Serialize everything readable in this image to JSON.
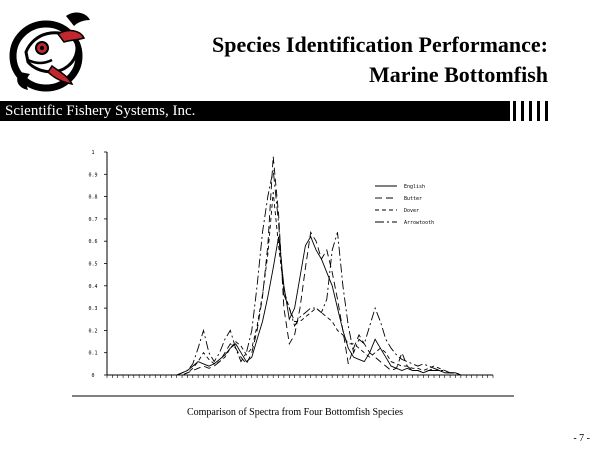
{
  "header": {
    "title_line1": "Species Identification Performance:",
    "title_line2": "Marine Bottomfish",
    "banner": "Scientific Fishery Systems, Inc."
  },
  "footer": {
    "caption": "Comparison of Spectra from Four Bottomfish Species",
    "page_number": "- 7 -"
  },
  "colors": {
    "banner": "#000000",
    "logo_red": "#c0282d",
    "ink": "#000000"
  },
  "chart_data": {
    "type": "line",
    "title": "",
    "xlabel": "",
    "ylabel": "",
    "ylim": [
      0,
      1
    ],
    "yticks": [
      "0",
      "0.1",
      "0.2",
      "0.3",
      "0.4",
      "0.5",
      "0.6",
      "0.7",
      "0.8",
      "0.9",
      "1"
    ],
    "xlim": [
      0,
      72
    ],
    "legend": "top-right",
    "series": [
      {
        "name": "English",
        "dash": "solid",
        "values": [
          0,
          0,
          0,
          0,
          0,
          0,
          0,
          0,
          0,
          0,
          0,
          0,
          0,
          0,
          0.01,
          0.02,
          0.04,
          0.06,
          0.05,
          0.04,
          0.05,
          0.07,
          0.09,
          0.12,
          0.14,
          0.1,
          0.06,
          0.08,
          0.16,
          0.24,
          0.35,
          0.48,
          0.62,
          0.4,
          0.25,
          0.3,
          0.44,
          0.58,
          0.62,
          0.56,
          0.52,
          0.46,
          0.4,
          0.3,
          0.2,
          0.12,
          0.08,
          0.07,
          0.06,
          0.1,
          0.16,
          0.12,
          0.08,
          0.04,
          0.03,
          0.02,
          0.03,
          0.02,
          0.02,
          0.01,
          0.02,
          0.02,
          0.02,
          0.01,
          0.01,
          0.01,
          0,
          0,
          0,
          0,
          0,
          0,
          0
        ]
      },
      {
        "name": "Butter",
        "dash": "longdash",
        "values": [
          0,
          0,
          0,
          0,
          0,
          0,
          0,
          0,
          0,
          0,
          0,
          0,
          0,
          0,
          0,
          0.01,
          0.02,
          0.03,
          0.04,
          0.03,
          0.04,
          0.06,
          0.1,
          0.14,
          0.12,
          0.08,
          0.05,
          0.1,
          0.2,
          0.35,
          0.58,
          0.98,
          0.72,
          0.3,
          0.14,
          0.18,
          0.3,
          0.48,
          0.64,
          0.6,
          0.52,
          0.56,
          0.46,
          0.34,
          0.2,
          0.05,
          0.12,
          0.18,
          0.14,
          0.1,
          0.08,
          0.06,
          0.04,
          0.02,
          0.03,
          0.1,
          0.04,
          0.02,
          0.02,
          0.01,
          0.02,
          0.03,
          0.02,
          0.01,
          0.01,
          0.01,
          0,
          0,
          0,
          0,
          0,
          0,
          0
        ]
      },
      {
        "name": "Dover",
        "dash": "shortdash",
        "values": [
          0,
          0,
          0,
          0,
          0,
          0,
          0,
          0,
          0,
          0,
          0,
          0,
          0,
          0,
          0,
          0.01,
          0.03,
          0.06,
          0.1,
          0.07,
          0.05,
          0.06,
          0.08,
          0.12,
          0.15,
          0.13,
          0.09,
          0.12,
          0.22,
          0.36,
          0.54,
          0.82,
          0.58,
          0.38,
          0.3,
          0.24,
          0.24,
          0.26,
          0.28,
          0.3,
          0.28,
          0.26,
          0.24,
          0.2,
          0.18,
          0.14,
          0.14,
          0.12,
          0.1,
          0.08,
          0.1,
          0.12,
          0.1,
          0.06,
          0.05,
          0.04,
          0.04,
          0.03,
          0.03,
          0.02,
          0.03,
          0.04,
          0.03,
          0.02,
          0.01,
          0.01,
          0,
          0,
          0,
          0,
          0,
          0,
          0
        ]
      },
      {
        "name": "Arrowtooth",
        "dash": "dashdot",
        "values": [
          0,
          0,
          0,
          0,
          0,
          0,
          0,
          0,
          0,
          0,
          0,
          0,
          0,
          0,
          0.01,
          0.02,
          0.05,
          0.12,
          0.2,
          0.1,
          0.06,
          0.1,
          0.16,
          0.2,
          0.12,
          0.06,
          0.1,
          0.2,
          0.4,
          0.64,
          0.8,
          0.92,
          0.68,
          0.36,
          0.3,
          0.22,
          0.26,
          0.28,
          0.3,
          0.3,
          0.28,
          0.34,
          0.56,
          0.64,
          0.4,
          0.22,
          0.1,
          0.16,
          0.14,
          0.22,
          0.3,
          0.24,
          0.16,
          0.12,
          0.09,
          0.07,
          0.06,
          0.05,
          0.04,
          0.05,
          0.04,
          0.03,
          0.02,
          0.02,
          0.01,
          0.01,
          0,
          0,
          0,
          0,
          0,
          0,
          0
        ]
      }
    ]
  }
}
